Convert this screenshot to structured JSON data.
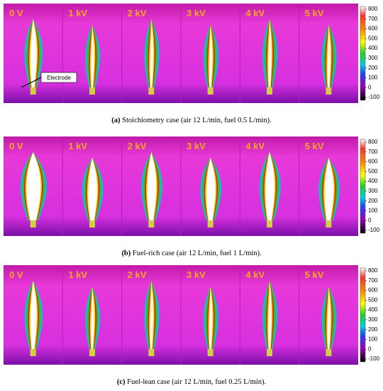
{
  "panels": [
    {
      "voltages": [
        "0 V",
        "1 kV",
        "2 kV",
        "3 kV",
        "4 kV",
        "5 kV"
      ],
      "annotation": "Electrode",
      "colorbar_ticks": [
        800,
        700,
        600,
        500,
        400,
        300,
        200,
        100,
        0,
        -100
      ],
      "caption_label": "(a)",
      "caption_text": "Stoichiometry case (air 12 L/min, fuel 0.5 L/min)."
    },
    {
      "voltages": [
        "0 V",
        "1 kV",
        "2 kV",
        "3 kV",
        "4 kV",
        "5 kV"
      ],
      "colorbar_ticks": [
        800,
        700,
        600,
        500,
        400,
        300,
        200,
        100,
        0,
        -100
      ],
      "caption_label": "(b)",
      "caption_text": "Fuel-rich case (air 12 L/min, fuel 1 L/min)."
    },
    {
      "voltages": [
        "0 V",
        "1 kV",
        "2 kV",
        "3 kV",
        "4 kV",
        "5 kV"
      ],
      "colorbar_ticks": [
        800,
        700,
        600,
        500,
        400,
        300,
        200,
        100,
        0,
        -100
      ],
      "caption_label": "(c)",
      "caption_text": "Fuel-lean case (air 12 L/min, fuel 0.25 L/min)."
    }
  ]
}
